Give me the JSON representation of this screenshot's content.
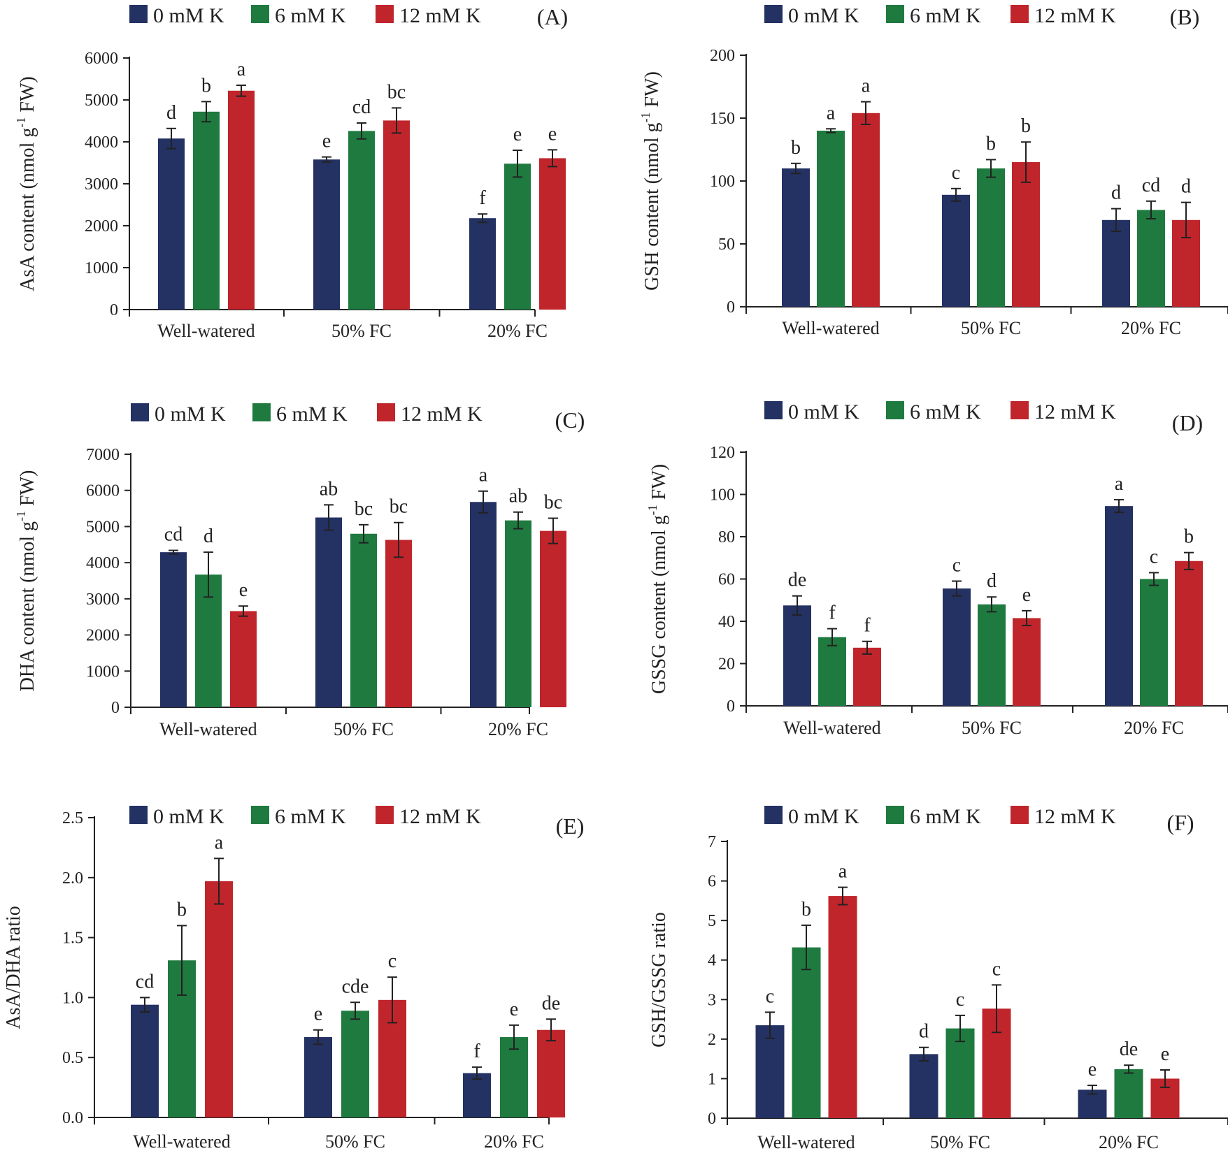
{
  "chart_data": [
    {
      "id": "A",
      "type": "bar",
      "panel_label": "(A)",
      "ylabel": "AsA content (nmol g",
      "ylabel_sup": "-1",
      "ylabel_tail": " FW)",
      "ylim": [
        0,
        6000
      ],
      "yticks": [
        0,
        1000,
        2000,
        3000,
        4000,
        5000,
        6000
      ],
      "ytick_labels": [
        "0",
        "1000",
        "2000",
        "3000",
        "4000",
        "5000",
        "6000"
      ],
      "categories": [
        "Well-watered",
        "50% FC",
        "20% FC"
      ],
      "series": [
        {
          "name": "0 mM K",
          "values": [
            4080,
            3580,
            2180
          ],
          "errors": [
            240,
            60,
            100
          ],
          "letters": [
            "d",
            "e",
            "f"
          ]
        },
        {
          "name": "6 mM K",
          "values": [
            4720,
            4260,
            3480
          ],
          "errors": [
            240,
            190,
            320
          ],
          "letters": [
            "b",
            "cd",
            "e"
          ]
        },
        {
          "name": "12 mM K",
          "values": [
            5220,
            4510,
            3610
          ],
          "errors": [
            130,
            300,
            200
          ],
          "letters": [
            "a",
            "bc",
            "e"
          ]
        }
      ]
    },
    {
      "id": "B",
      "type": "bar",
      "panel_label": "(B)",
      "ylabel": "GSH content (nmol g",
      "ylabel_sup": "-1",
      "ylabel_tail": " FW)",
      "ylim": [
        0,
        200
      ],
      "yticks": [
        0,
        50,
        100,
        150,
        200
      ],
      "ytick_labels": [
        "0",
        "50",
        "100",
        "150",
        "200"
      ],
      "categories": [
        "Well-watered",
        "50% FC",
        "20% FC"
      ],
      "series": [
        {
          "name": "0 mM K",
          "values": [
            110,
            89,
            69
          ],
          "errors": [
            4,
            5,
            9
          ],
          "letters": [
            "b",
            "c",
            "d"
          ]
        },
        {
          "name": "6 mM K",
          "values": [
            140,
            110,
            77
          ],
          "errors": [
            1.5,
            7,
            7
          ],
          "letters": [
            "a",
            "b",
            "cd"
          ]
        },
        {
          "name": "12 mM K",
          "values": [
            154,
            115,
            69
          ],
          "errors": [
            9,
            16,
            14
          ],
          "letters": [
            "a",
            "b",
            "d"
          ]
        }
      ]
    },
    {
      "id": "C",
      "type": "bar",
      "panel_label": "(C)",
      "ylabel": "DHA content (nmol g",
      "ylabel_sup": "-1",
      "ylabel_tail": "  FW)",
      "ylim": [
        0,
        7000
      ],
      "yticks": [
        0,
        1000,
        2000,
        3000,
        4000,
        5000,
        6000,
        7000
      ],
      "ytick_labels": [
        "0",
        "1000",
        "2000",
        "3000",
        "4000",
        "5000",
        "6000",
        "7000"
      ],
      "categories": [
        "Well-watered",
        "50% FC",
        "20% FC"
      ],
      "series": [
        {
          "name": "0 mM K",
          "values": [
            4290,
            5250,
            5680
          ],
          "errors": [
            50,
            350,
            300
          ],
          "letters": [
            "cd",
            "ab",
            "a"
          ]
        },
        {
          "name": "6 mM K",
          "values": [
            3670,
            4800,
            5170
          ],
          "errors": [
            620,
            250,
            230
          ],
          "letters": [
            "d",
            "bc",
            "ab"
          ]
        },
        {
          "name": "12 mM K",
          "values": [
            2660,
            4630,
            4880
          ],
          "errors": [
            140,
            480,
            350
          ],
          "letters": [
            "e",
            "bc",
            "bc"
          ]
        }
      ]
    },
    {
      "id": "D",
      "type": "bar",
      "panel_label": "(D)",
      "ylabel": "GSSG content (nmol g",
      "ylabel_sup": "-1",
      "ylabel_tail": " FW)",
      "ylim": [
        0,
        120
      ],
      "yticks": [
        0,
        20,
        40,
        60,
        80,
        100,
        120
      ],
      "ytick_labels": [
        "0",
        "20",
        "40",
        "60",
        "80",
        "100",
        "120"
      ],
      "categories": [
        "Well-watered",
        "50% FC",
        "20% FC"
      ],
      "series": [
        {
          "name": "0 mM K",
          "values": [
            47.5,
            55.5,
            94.5
          ],
          "errors": [
            4.5,
            3.5,
            3
          ],
          "letters": [
            "de",
            "c",
            "a"
          ]
        },
        {
          "name": "6 mM K",
          "values": [
            32.5,
            48,
            60
          ],
          "errors": [
            4,
            3.5,
            3
          ],
          "letters": [
            "f",
            "d",
            "c"
          ]
        },
        {
          "name": "12 mM K",
          "values": [
            27.5,
            41.5,
            68.5
          ],
          "errors": [
            3,
            3.5,
            4
          ],
          "letters": [
            "f",
            "e",
            "b"
          ]
        }
      ]
    },
    {
      "id": "E",
      "type": "bar",
      "panel_label": "(E)",
      "ylabel": "AsA/DHA ratio",
      "ylabel_sup": "",
      "ylabel_tail": "",
      "ylim": [
        0,
        2.5
      ],
      "yticks": [
        0,
        0.5,
        1.0,
        1.5,
        2.0,
        2.5
      ],
      "ytick_labels": [
        "0.0",
        "0.5",
        "1.0",
        "1.5",
        "2.0",
        "2.5"
      ],
      "categories": [
        "Well-watered",
        "50% FC",
        "20% FC"
      ],
      "series": [
        {
          "name": "0 mM K",
          "values": [
            0.94,
            0.67,
            0.37
          ],
          "errors": [
            0.06,
            0.06,
            0.05
          ],
          "letters": [
            "cd",
            "e",
            "f"
          ]
        },
        {
          "name": "6 mM K",
          "values": [
            1.31,
            0.89,
            0.67
          ],
          "errors": [
            0.29,
            0.07,
            0.1
          ],
          "letters": [
            "b",
            "cde",
            "e"
          ]
        },
        {
          "name": "12 mM K",
          "values": [
            1.97,
            0.98,
            0.73
          ],
          "errors": [
            0.19,
            0.19,
            0.09
          ],
          "letters": [
            "a",
            "c",
            "de"
          ]
        }
      ]
    },
    {
      "id": "F",
      "type": "bar",
      "panel_label": "(F)",
      "ylabel": "GSH/GSSG ratio",
      "ylabel_sup": "",
      "ylabel_tail": "",
      "ylim": [
        0,
        7
      ],
      "yticks": [
        0,
        1,
        2,
        3,
        4,
        5,
        6,
        7
      ],
      "ytick_labels": [
        "0",
        "1",
        "2",
        "3",
        "4",
        "5",
        "6",
        "7"
      ],
      "categories": [
        "Well-watered",
        "50% FC",
        "20% FC"
      ],
      "series": [
        {
          "name": "0 mM K",
          "values": [
            2.35,
            1.62,
            0.72
          ],
          "errors": [
            0.33,
            0.17,
            0.11
          ],
          "letters": [
            "c",
            "d",
            "e"
          ]
        },
        {
          "name": "6 mM K",
          "values": [
            4.32,
            2.27,
            1.24
          ],
          "errors": [
            0.56,
            0.33,
            0.1
          ],
          "letters": [
            "b",
            "c",
            "de"
          ]
        },
        {
          "name": "12 mM K",
          "values": [
            5.62,
            2.77,
            1.0
          ],
          "errors": [
            0.22,
            0.6,
            0.22
          ],
          "letters": [
            "a",
            "c",
            "e"
          ]
        }
      ]
    }
  ],
  "colors": {
    "series": [
      "#243163",
      "#1f7a3f",
      "#c0252c"
    ],
    "axis": "#222222"
  }
}
